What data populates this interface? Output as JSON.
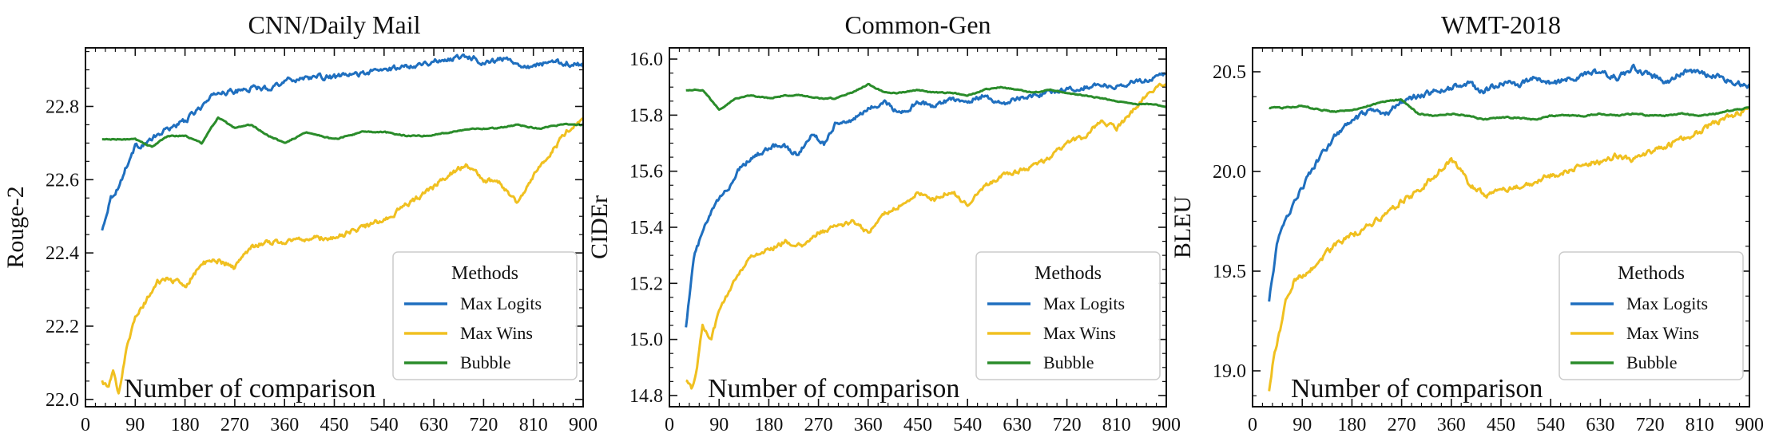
{
  "figure": {
    "background": "#ffffff"
  },
  "chart_data": [
    {
      "type": "line",
      "title": "CNN/Daily Mail",
      "xlabel": "Number of comparison",
      "ylabel": "Rouge-2",
      "xlim": [
        0,
        900
      ],
      "ylim": [
        21.98,
        22.96
      ],
      "xticks": [
        0,
        90,
        180,
        270,
        360,
        450,
        540,
        630,
        720,
        810,
        900
      ],
      "yticks": [
        22.0,
        22.2,
        22.4,
        22.6,
        22.8
      ],
      "grid": false,
      "legend": {
        "title": "Methods",
        "location": "lower-right"
      },
      "series": [
        {
          "name": "Max Logits",
          "color": "#1f6fbf",
          "x": [
            30,
            45,
            60,
            75,
            90,
            110,
            130,
            150,
            180,
            210,
            240,
            270,
            300,
            330,
            360,
            400,
            450,
            500,
            540,
            580,
            620,
            660,
            690,
            720,
            760,
            800,
            840,
            870,
            900
          ],
          "y": [
            22.46,
            22.55,
            22.58,
            22.64,
            22.69,
            22.7,
            22.72,
            22.74,
            22.76,
            22.8,
            22.84,
            22.84,
            22.85,
            22.85,
            22.87,
            22.88,
            22.88,
            22.89,
            22.9,
            22.91,
            22.92,
            22.93,
            22.94,
            22.92,
            22.93,
            22.91,
            22.92,
            22.92,
            22.91
          ]
        },
        {
          "name": "Max Wins",
          "color": "#f0c020",
          "x": [
            30,
            40,
            50,
            60,
            75,
            90,
            110,
            130,
            150,
            180,
            210,
            240,
            270,
            300,
            330,
            360,
            400,
            450,
            500,
            540,
            580,
            610,
            630,
            660,
            690,
            720,
            750,
            780,
            810,
            840,
            870,
            900
          ],
          "y": [
            22.05,
            22.03,
            22.07,
            22.02,
            22.15,
            22.22,
            22.27,
            22.32,
            22.33,
            22.31,
            22.37,
            22.38,
            22.36,
            22.42,
            22.43,
            22.43,
            22.44,
            22.44,
            22.47,
            22.49,
            22.53,
            22.56,
            22.58,
            22.62,
            22.64,
            22.6,
            22.59,
            22.54,
            22.61,
            22.67,
            22.73,
            22.76
          ]
        },
        {
          "name": "Bubble",
          "color": "#2a8c2a",
          "x": [
            30,
            60,
            90,
            120,
            150,
            180,
            210,
            240,
            270,
            300,
            330,
            360,
            400,
            450,
            500,
            540,
            580,
            620,
            660,
            700,
            740,
            780,
            820,
            860,
            900
          ],
          "y": [
            22.71,
            22.71,
            22.71,
            22.69,
            22.72,
            22.72,
            22.7,
            22.77,
            22.74,
            22.75,
            22.72,
            22.7,
            22.73,
            22.71,
            22.73,
            22.73,
            22.72,
            22.72,
            22.73,
            22.74,
            22.74,
            22.75,
            22.74,
            22.75,
            22.75
          ]
        }
      ]
    },
    {
      "type": "line",
      "title": "Common-Gen",
      "xlabel": "Number of comparison",
      "ylabel": "CIDEr",
      "xlim": [
        0,
        900
      ],
      "ylim": [
        14.76,
        16.04
      ],
      "xticks": [
        0,
        90,
        180,
        270,
        360,
        450,
        540,
        630,
        720,
        810,
        900
      ],
      "yticks": [
        14.8,
        15.0,
        15.2,
        15.4,
        15.6,
        15.8,
        16.0
      ],
      "grid": false,
      "legend": {
        "title": "Methods",
        "location": "lower-right"
      },
      "series": [
        {
          "name": "Max Logits",
          "color": "#1f6fbf",
          "x": [
            30,
            45,
            60,
            75,
            90,
            110,
            130,
            150,
            170,
            200,
            230,
            260,
            280,
            300,
            330,
            360,
            390,
            420,
            450,
            480,
            510,
            540,
            570,
            600,
            630,
            660,
            690,
            720,
            750,
            780,
            810,
            840,
            870,
            900
          ],
          "y": [
            15.05,
            15.3,
            15.38,
            15.45,
            15.5,
            15.55,
            15.62,
            15.65,
            15.67,
            15.7,
            15.66,
            15.73,
            15.7,
            15.77,
            15.78,
            15.82,
            15.85,
            15.8,
            15.85,
            15.83,
            15.86,
            15.85,
            15.87,
            15.84,
            15.86,
            15.87,
            15.88,
            15.89,
            15.9,
            15.91,
            15.9,
            15.92,
            15.93,
            15.95
          ]
        },
        {
          "name": "Max Wins",
          "color": "#f0c020",
          "x": [
            30,
            40,
            50,
            60,
            75,
            90,
            110,
            130,
            150,
            180,
            210,
            240,
            270,
            300,
            330,
            360,
            390,
            420,
            450,
            480,
            510,
            540,
            570,
            600,
            630,
            660,
            690,
            720,
            750,
            780,
            810,
            840,
            870,
            900
          ],
          "y": [
            14.86,
            14.82,
            14.9,
            15.05,
            15.0,
            15.1,
            15.18,
            15.25,
            15.3,
            15.32,
            15.35,
            15.33,
            15.38,
            15.4,
            15.42,
            15.38,
            15.45,
            15.48,
            15.52,
            15.5,
            15.53,
            15.48,
            15.55,
            15.58,
            15.6,
            15.62,
            15.65,
            15.7,
            15.72,
            15.78,
            15.75,
            15.82,
            15.88,
            15.92
          ]
        },
        {
          "name": "Bubble",
          "color": "#2a8c2a",
          "x": [
            30,
            60,
            90,
            120,
            150,
            180,
            210,
            240,
            270,
            300,
            330,
            360,
            390,
            420,
            450,
            480,
            510,
            540,
            570,
            600,
            630,
            660,
            690,
            720,
            750,
            780,
            810,
            840,
            870,
            900
          ],
          "y": [
            15.89,
            15.89,
            15.82,
            15.86,
            15.87,
            15.86,
            15.87,
            15.87,
            15.86,
            15.86,
            15.88,
            15.91,
            15.88,
            15.88,
            15.89,
            15.88,
            15.88,
            15.87,
            15.89,
            15.9,
            15.89,
            15.88,
            15.89,
            15.88,
            15.87,
            15.86,
            15.85,
            15.84,
            15.84,
            15.83
          ]
        }
      ]
    },
    {
      "type": "line",
      "title": "WMT-2018",
      "xlabel": "Number of comparison",
      "ylabel": "BLEU",
      "xlim": [
        0,
        900
      ],
      "ylim": [
        18.82,
        20.62
      ],
      "xticks": [
        0,
        90,
        180,
        270,
        360,
        450,
        540,
        630,
        720,
        810,
        900
      ],
      "yticks": [
        19.0,
        19.5,
        20.0,
        20.5
      ],
      "grid": false,
      "legend": {
        "title": "Methods",
        "location": "lower-right"
      },
      "series": [
        {
          "name": "Max Logits",
          "color": "#1f6fbf",
          "x": [
            30,
            45,
            60,
            75,
            90,
            110,
            130,
            150,
            180,
            210,
            240,
            270,
            300,
            330,
            360,
            390,
            420,
            450,
            480,
            510,
            540,
            570,
            600,
            630,
            660,
            690,
            720,
            750,
            780,
            810,
            840,
            870,
            900
          ],
          "y": [
            19.35,
            19.65,
            19.75,
            19.85,
            19.92,
            20.02,
            20.1,
            20.18,
            20.25,
            20.3,
            20.28,
            20.35,
            20.38,
            20.4,
            20.42,
            20.44,
            20.4,
            20.45,
            20.43,
            20.47,
            20.44,
            20.46,
            20.48,
            20.5,
            20.47,
            20.52,
            20.48,
            20.45,
            20.5,
            20.49,
            20.48,
            20.45,
            20.43
          ]
        },
        {
          "name": "Max Wins",
          "color": "#f0c020",
          "x": [
            30,
            40,
            50,
            60,
            75,
            90,
            110,
            130,
            150,
            180,
            210,
            240,
            270,
            300,
            330,
            360,
            390,
            420,
            450,
            480,
            510,
            540,
            570,
            600,
            630,
            660,
            690,
            720,
            750,
            780,
            810,
            840,
            870,
            900
          ],
          "y": [
            18.9,
            19.1,
            19.2,
            19.35,
            19.45,
            19.48,
            19.52,
            19.58,
            19.63,
            19.68,
            19.73,
            19.78,
            19.85,
            19.9,
            19.98,
            20.06,
            19.95,
            19.88,
            19.9,
            19.92,
            19.95,
            19.98,
            20.0,
            20.03,
            20.05,
            20.08,
            20.06,
            20.1,
            20.12,
            20.17,
            20.2,
            20.25,
            20.28,
            20.32
          ]
        },
        {
          "name": "Bubble",
          "color": "#2a8c2a",
          "x": [
            30,
            60,
            90,
            120,
            150,
            180,
            210,
            240,
            270,
            300,
            330,
            360,
            390,
            420,
            450,
            480,
            510,
            540,
            570,
            600,
            630,
            660,
            690,
            720,
            750,
            780,
            810,
            840,
            870,
            900
          ],
          "y": [
            20.32,
            20.32,
            20.33,
            20.31,
            20.3,
            20.31,
            20.33,
            20.35,
            20.36,
            20.29,
            20.28,
            20.29,
            20.28,
            20.26,
            20.27,
            20.27,
            20.26,
            20.28,
            20.28,
            20.28,
            20.29,
            20.28,
            20.29,
            20.28,
            20.28,
            20.29,
            20.28,
            20.29,
            20.31,
            20.32
          ]
        }
      ]
    }
  ]
}
